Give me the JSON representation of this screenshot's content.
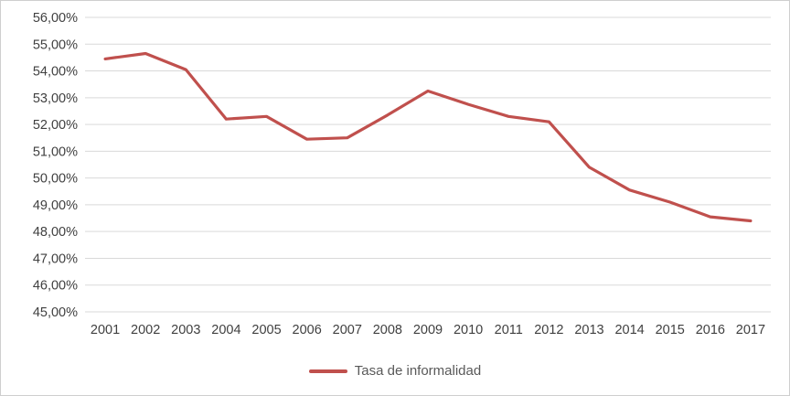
{
  "colors": {
    "series": "#c0504d",
    "gridline": "#d9d9d9",
    "axis_text": "#404040",
    "legend_text": "#595959",
    "frame_border": "#cfcfcf"
  },
  "legend": {
    "label": "Tasa de informalidad"
  },
  "chart_data": {
    "type": "line",
    "title": "",
    "xlabel": "",
    "ylabel": "",
    "categories": [
      "2001",
      "2002",
      "2003",
      "2004",
      "2005",
      "2006",
      "2007",
      "2008",
      "2009",
      "2010",
      "2011",
      "2012",
      "2013",
      "2014",
      "2015",
      "2016",
      "2017"
    ],
    "series": [
      {
        "name": "Tasa de informalidad",
        "values": [
          54.45,
          54.65,
          54.05,
          52.2,
          52.3,
          51.45,
          51.5,
          52.35,
          53.25,
          52.75,
          52.3,
          52.1,
          50.4,
          49.55,
          49.1,
          48.55,
          48.4
        ]
      }
    ],
    "ylim": [
      45,
      56
    ],
    "y_tick_step": 1,
    "y_tick_labels": [
      "45,00%",
      "46,00%",
      "47,00%",
      "48,00%",
      "49,00%",
      "50,00%",
      "51,00%",
      "52,00%",
      "53,00%",
      "54,00%",
      "55,00%",
      "56,00%"
    ],
    "grid": "horizontal",
    "legend_position": "bottom"
  }
}
